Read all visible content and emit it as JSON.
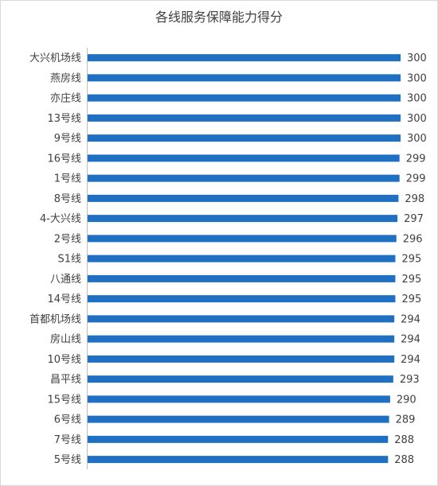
{
  "chart_data": {
    "type": "bar",
    "orientation": "horizontal",
    "title": "各线服务保障能力得分",
    "categories": [
      "大兴机场线",
      "燕房线",
      "亦庄线",
      "13号线",
      "9号线",
      "16号线",
      "1号线",
      "8号线",
      "4-大兴线",
      "2号线",
      "S1线",
      "八通线",
      "14号线",
      "首都机场线",
      "房山线",
      "10号线",
      "昌平线",
      "15号线",
      "6号线",
      "7号线",
      "5号线"
    ],
    "values": [
      300,
      300,
      300,
      300,
      300,
      299,
      299,
      298,
      297,
      296,
      295,
      295,
      295,
      294,
      294,
      294,
      293,
      290,
      289,
      288,
      288
    ],
    "value_labels": [
      "300",
      "300",
      "300",
      "300",
      "300",
      "299",
      "299",
      "298",
      "297",
      "296",
      "295",
      "295",
      "295",
      "294",
      "294",
      "294",
      "293",
      "290",
      "289",
      "288",
      "288"
    ],
    "xlim": [
      0,
      300
    ],
    "xaxis_visible": false,
    "grid": false,
    "legend": "none",
    "bar_color": "#1f6fc2"
  }
}
